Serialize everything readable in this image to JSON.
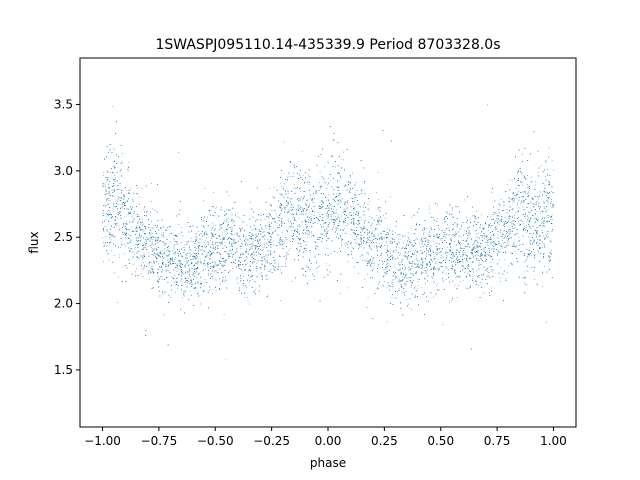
{
  "chart_data": {
    "type": "scatter",
    "title": "1SWASPJ095110.14-435339.9 Period 8703328.0s",
    "xlabel": "phase",
    "ylabel": "flux",
    "xlim": [
      -1.1,
      1.1
    ],
    "ylim": [
      1.07,
      3.85
    ],
    "x_ticks": [
      -1.0,
      -0.75,
      -0.5,
      -0.25,
      0.0,
      0.25,
      0.5,
      0.75,
      1.0
    ],
    "x_tick_labels": [
      "−1.00",
      "−0.75",
      "−0.50",
      "−0.25",
      "0.00",
      "0.25",
      "0.50",
      "0.75",
      "1.00"
    ],
    "y_ticks": [
      1.5,
      2.0,
      2.5,
      3.0,
      3.5
    ],
    "y_tick_labels": [
      "1.5",
      "2.0",
      "2.5",
      "3.0",
      "3.5"
    ],
    "grid": false,
    "legend": "none",
    "point_color": "#1f77b4",
    "point_count_approx": 12000,
    "series": [
      {
        "profile_phase": [
          0.0,
          0.05,
          0.1,
          0.15,
          0.2,
          0.25,
          0.3,
          0.35,
          0.4,
          0.45,
          0.5,
          0.55,
          0.6,
          0.65,
          0.7,
          0.75,
          0.8,
          0.85,
          0.9,
          0.95,
          1.0
        ],
        "median_flux": [
          2.75,
          2.75,
          2.65,
          2.55,
          2.45,
          2.42,
          2.33,
          2.3,
          2.32,
          2.38,
          2.42,
          2.45,
          2.4,
          2.38,
          2.4,
          2.5,
          2.6,
          2.65,
          2.6,
          2.6,
          2.7
        ],
        "flux_spread": [
          0.32,
          0.3,
          0.25,
          0.22,
          0.2,
          0.22,
          0.2,
          0.2,
          0.2,
          0.2,
          0.21,
          0.22,
          0.2,
          0.2,
          0.2,
          0.22,
          0.24,
          0.27,
          0.28,
          0.28,
          0.32
        ]
      }
    ]
  }
}
